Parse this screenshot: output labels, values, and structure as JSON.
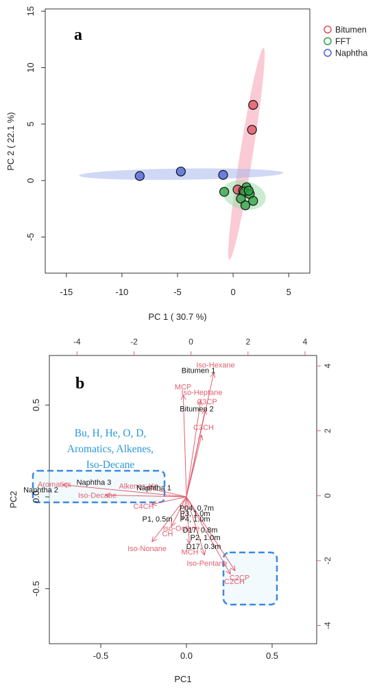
{
  "chart_data": [
    {
      "type": "scatter",
      "panel_label": "a",
      "xlabel": "PC 1 ( 30.7 %)",
      "ylabel": "PC 2 ( 22.1 %)",
      "xlim": [
        -16.9,
        6.9
      ],
      "ylim": [
        -8.2,
        15.2
      ],
      "xticks": [
        -15,
        -10,
        -5,
        0,
        5
      ],
      "yticks": [
        -5,
        0,
        5,
        10,
        15
      ],
      "legend_position": "top-right",
      "colors": {
        "Bitumen": "#e05060",
        "FFT": "#2aa040",
        "Naphtha": "#4a60d8"
      },
      "series": [
        {
          "name": "Bitumen",
          "points": [
            [
              1.8,
              6.7
            ],
            [
              1.7,
              4.5
            ],
            [
              0.4,
              -0.8
            ],
            [
              0.9,
              -0.9
            ]
          ]
        },
        {
          "name": "FFT",
          "points": [
            [
              -0.8,
              -1.0
            ],
            [
              1.2,
              -0.6
            ],
            [
              1.0,
              -1.0
            ],
            [
              1.5,
              -1.2
            ],
            [
              0.7,
              -1.6
            ],
            [
              1.8,
              -1.8
            ],
            [
              1.1,
              -2.2
            ],
            [
              1.4,
              -0.9
            ]
          ]
        },
        {
          "name": "Naphtha",
          "points": [
            [
              -8.4,
              0.4
            ],
            [
              -4.7,
              0.8
            ],
            [
              -0.9,
              0.5
            ]
          ]
        }
      ]
    },
    {
      "type": "scatter",
      "panel_label": "b",
      "subtype": "biplot",
      "xlabel": "PC1",
      "ylabel": "PC2",
      "xlim": [
        -0.8,
        0.76
      ],
      "ylim": [
        -0.8,
        0.77
      ],
      "xticks": [
        "-0.5",
        "0.0",
        "0.5"
      ],
      "yticks": [
        "-0.5",
        "0.0",
        "0.5"
      ],
      "top_ticks": [
        "-4",
        "-2",
        "0",
        "2",
        "4"
      ],
      "right_ticks": [
        "-4",
        "-2",
        "0",
        "2",
        "4"
      ],
      "group_annotation": [
        "Bu, H, He, O, D,",
        "Aromatics, Alkenes,",
        "Iso-Decane"
      ],
      "samples": [
        {
          "label": "Bitumen 1",
          "x": 0.07,
          "y": 0.69
        },
        {
          "label": "Bitumen 2",
          "x": 0.06,
          "y": 0.48
        },
        {
          "label": "Naphtha 3",
          "x": -0.54,
          "y": 0.08
        },
        {
          "label": "Naphtha 2",
          "x": -0.85,
          "y": 0.04
        },
        {
          "label": "Naphtha 1",
          "x": -0.19,
          "y": 0.05
        },
        {
          "label": "P04, 0.7m",
          "x": 0.06,
          "y": -0.06
        },
        {
          "label": "P3, 1.0m",
          "x": 0.05,
          "y": -0.09
        },
        {
          "label": "P4, 1.0m",
          "x": 0.05,
          "y": -0.12
        },
        {
          "label": "P1, 0.5m",
          "x": -0.17,
          "y": -0.12
        },
        {
          "label": "D17, 0.8m",
          "x": 0.08,
          "y": -0.18
        },
        {
          "label": "P2, 1.0m",
          "x": 0.11,
          "y": -0.22
        },
        {
          "label": "D17, 0.3m",
          "x": 0.1,
          "y": -0.27
        }
      ],
      "loadings": [
        {
          "label": "Iso-Hexane",
          "x": 0.17,
          "y": 0.72
        },
        {
          "label": "MCP",
          "x": -0.02,
          "y": 0.6
        },
        {
          "label": "Iso-Heptane",
          "x": 0.09,
          "y": 0.57
        },
        {
          "label": "C3CP",
          "x": 0.12,
          "y": 0.52
        },
        {
          "label": "C3CH",
          "x": 0.1,
          "y": 0.38
        },
        {
          "label": "Aromatics",
          "x": -0.77,
          "y": 0.07
        },
        {
          "label": "Alkenes-He",
          "x": -0.28,
          "y": 0.06
        },
        {
          "label": "Iso-Decane",
          "x": -0.52,
          "y": 0.01
        },
        {
          "label": "C4CH",
          "x": -0.25,
          "y": -0.05
        },
        {
          "label": "Iso-Octane",
          "x": -0.03,
          "y": -0.17
        },
        {
          "label": "CH",
          "x": -0.11,
          "y": -0.2
        },
        {
          "label": "Iso-Nonane",
          "x": -0.23,
          "y": -0.28
        },
        {
          "label": "MCH",
          "x": 0.02,
          "y": -0.3
        },
        {
          "label": "Iso-Pentane",
          "x": 0.12,
          "y": -0.36
        },
        {
          "label": "C2CP",
          "x": 0.31,
          "y": -0.44
        },
        {
          "label": "C2CH",
          "x": 0.28,
          "y": -0.46
        }
      ]
    }
  ]
}
